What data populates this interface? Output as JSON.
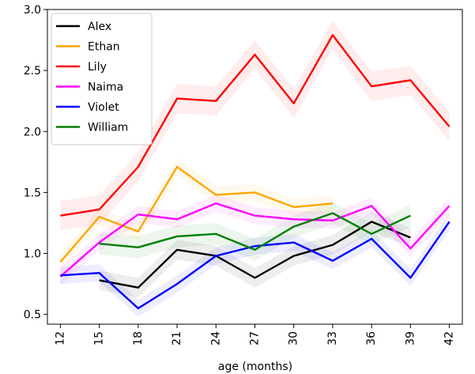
{
  "chart_data": {
    "type": "line",
    "xlabel": "age (months)",
    "ylabel": "",
    "title": "",
    "x": [
      12,
      15,
      18,
      21,
      24,
      27,
      30,
      33,
      36,
      39,
      42
    ],
    "xticks": [
      "12",
      "15",
      "18",
      "21",
      "24",
      "27",
      "30",
      "33",
      "36",
      "39",
      "42"
    ],
    "yticks": [
      "0.5",
      "1.0",
      "1.5",
      "2.0",
      "2.5",
      "3.0"
    ],
    "ylim": [
      0.42,
      3.0
    ],
    "xlim": [
      11.0,
      43.0
    ],
    "grid": false,
    "legend_position": "top-left",
    "series": [
      {
        "name": "Alex",
        "color": "#000000",
        "values": [
          null,
          0.78,
          0.72,
          1.03,
          0.98,
          0.8,
          0.98,
          1.07,
          1.26,
          1.13,
          null
        ],
        "ci": 0.08
      },
      {
        "name": "Ethan",
        "color": "#FFA500",
        "values": [
          0.93,
          1.3,
          1.18,
          1.71,
          1.48,
          1.5,
          1.38,
          1.41,
          null,
          null,
          null
        ],
        "ci": 0.07
      },
      {
        "name": "Lily",
        "color": "#FF0000",
        "values": [
          1.31,
          1.36,
          1.71,
          2.27,
          2.25,
          2.63,
          2.23,
          2.79,
          2.37,
          2.42,
          2.04
        ],
        "ci": 0.12
      },
      {
        "name": "Naima",
        "color": "#FF00FF",
        "values": [
          0.81,
          1.09,
          1.32,
          1.28,
          1.41,
          1.31,
          1.28,
          1.27,
          1.39,
          1.04,
          1.39
        ],
        "ci": 0.07
      },
      {
        "name": "Violet",
        "color": "#0000FF",
        "values": [
          0.82,
          0.84,
          0.55,
          0.75,
          0.98,
          1.06,
          1.09,
          0.94,
          1.12,
          0.8,
          1.26
        ],
        "ci": 0.07
      },
      {
        "name": "William",
        "color": "#008000",
        "values": [
          null,
          1.08,
          1.05,
          1.14,
          1.16,
          1.03,
          1.22,
          1.33,
          1.16,
          1.31,
          null
        ],
        "ci": 0.09
      }
    ]
  }
}
